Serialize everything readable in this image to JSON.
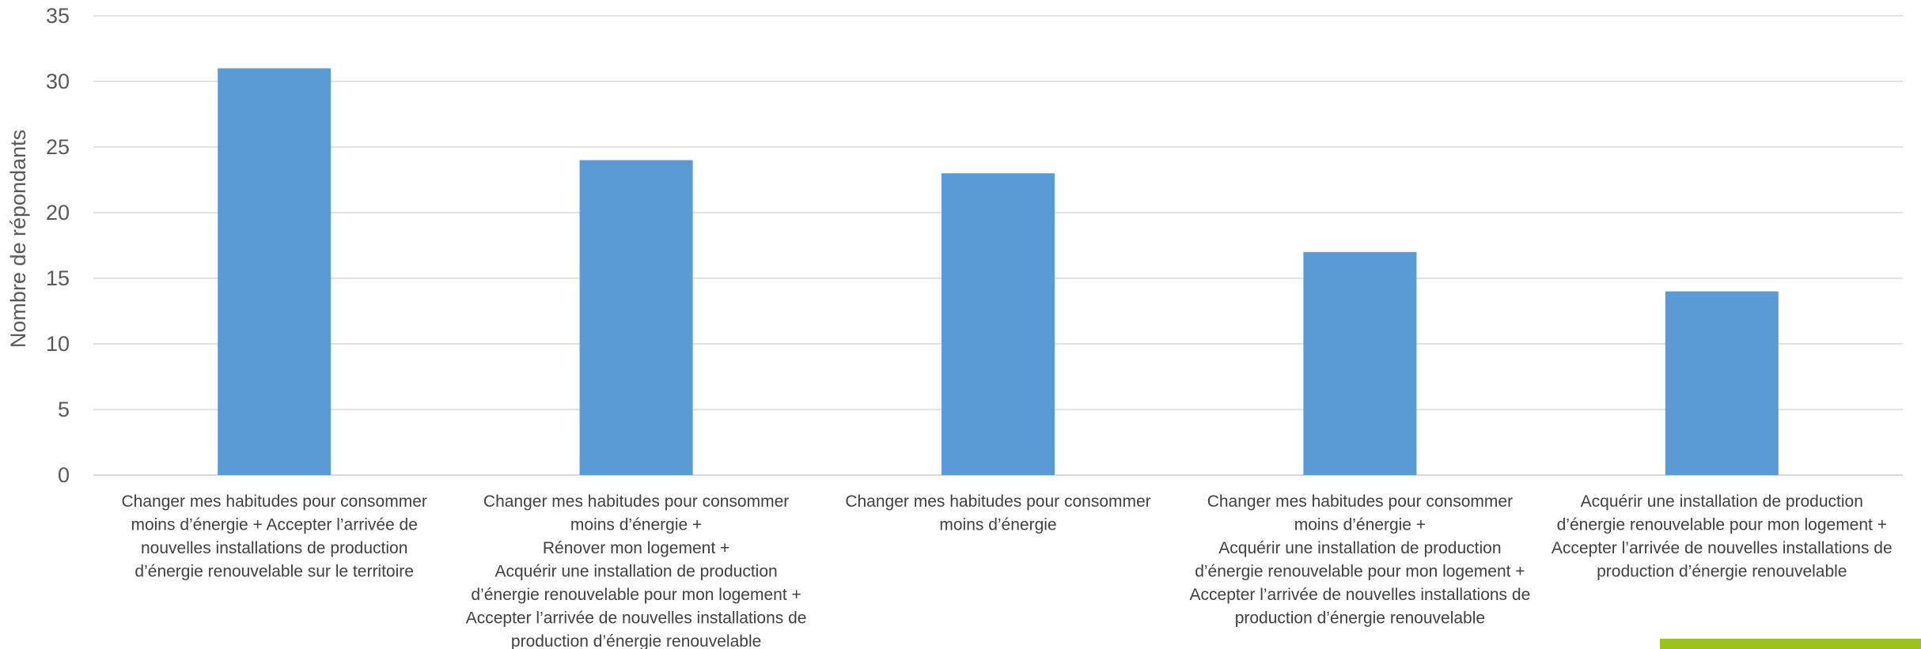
{
  "chart_data": {
    "type": "bar",
    "ylabel": "Nombre de répondants",
    "ylim": [
      0,
      35
    ],
    "yticks": [
      0,
      5,
      10,
      15,
      20,
      25,
      30,
      35
    ],
    "grid": true,
    "bar_color": "#5b9bd5",
    "categories": [
      [
        "Changer mes habitudes pour consommer",
        "moins d’énergie + Accepter l’arrivée de",
        "nouvelles installations de production",
        "d’énergie renouvelable sur le territoire"
      ],
      [
        "Changer mes habitudes pour consommer",
        "moins d’énergie +",
        "Rénover mon logement +",
        "Acquérir une installation de production",
        "d’énergie renouvelable pour mon logement +",
        "Accepter l’arrivée de nouvelles installations de",
        "production d’énergie renouvelable"
      ],
      [
        "Changer mes habitudes pour consommer",
        "moins d’énergie"
      ],
      [
        "Changer mes habitudes pour consommer",
        "moins d’énergie +",
        "Acquérir une installation de production",
        "d’énergie renouvelable pour mon logement +",
        "Accepter l’arrivée de nouvelles installations de",
        "production d’énergie renouvelable"
      ],
      [
        "Acquérir une installation de production",
        "d’énergie renouvelable pour mon logement +",
        "Accepter l’arrivée de nouvelles installations de",
        "production d’énergie renouvelable"
      ]
    ],
    "values": [
      31,
      24,
      23,
      17,
      14
    ]
  },
  "colors": {
    "grid": "#d9d9d9",
    "accent": "#9cc31c"
  }
}
